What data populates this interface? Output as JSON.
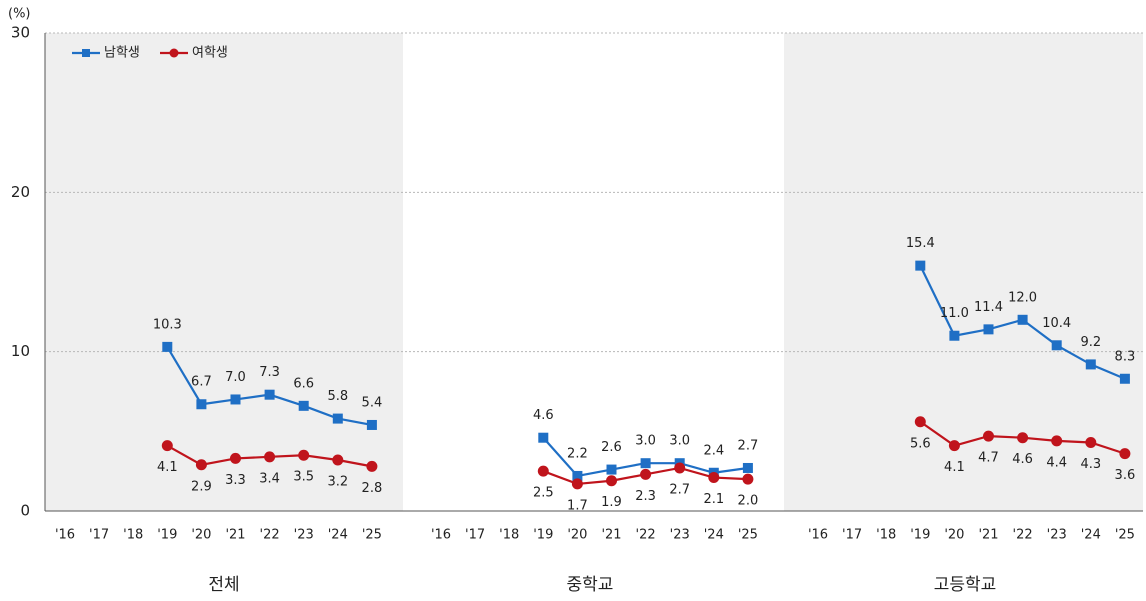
{
  "chart_data": {
    "type": "line",
    "y_unit": "(%)",
    "ylim": [
      0,
      30
    ],
    "yticks": [
      0,
      10,
      20,
      30
    ],
    "grid": true,
    "legend": "upper left",
    "categories": [
      "'16",
      "'17",
      "'18",
      "'19",
      "'20",
      "'21",
      "'22",
      "'23",
      "'24",
      "'25"
    ],
    "series": [
      {
        "name": "남학생",
        "color": "#1f6fc5",
        "marker": "square"
      },
      {
        "name": "여학생",
        "color": "#c0141c",
        "marker": "circle"
      }
    ],
    "panels": [
      {
        "title": "전체",
        "series": [
          {
            "values": [
              null,
              null,
              null,
              10.3,
              6.7,
              7.0,
              7.3,
              6.6,
              5.8,
              5.4
            ],
            "value_labels": [
              null,
              null,
              null,
              "10.3",
              "6.7",
              "7.0",
              "7.3",
              "6.6",
              "5.8",
              "5.4"
            ]
          },
          {
            "values": [
              null,
              null,
              null,
              4.1,
              2.9,
              3.3,
              3.4,
              3.5,
              3.2,
              2.8
            ],
            "value_labels": [
              null,
              null,
              null,
              "4.1",
              "2.9",
              "3.3",
              "3.4",
              "3.5",
              "3.2",
              "2.8"
            ]
          }
        ]
      },
      {
        "title": "중학교",
        "series": [
          {
            "values": [
              null,
              null,
              null,
              4.6,
              2.2,
              2.6,
              3.0,
              3.0,
              2.4,
              2.7
            ],
            "value_labels": [
              null,
              null,
              null,
              "4.6",
              "2.2",
              "2.6",
              "3.0",
              "3.0",
              "2.4",
              "2.7"
            ]
          },
          {
            "values": [
              null,
              null,
              null,
              2.5,
              1.7,
              1.9,
              2.3,
              2.7,
              2.1,
              2.0
            ],
            "value_labels": [
              null,
              null,
              null,
              "2.5",
              "1.7",
              "1.9",
              "2.3",
              "2.7",
              "2.1",
              "2.0"
            ]
          }
        ]
      },
      {
        "title": "고등학교",
        "series": [
          {
            "values": [
              null,
              null,
              null,
              15.4,
              11.0,
              11.4,
              12.0,
              10.4,
              9.2,
              8.3
            ],
            "value_labels": [
              null,
              null,
              null,
              "15.4",
              "11.0",
              "11.4",
              "12.0",
              "10.4",
              "9.2",
              "8.3"
            ]
          },
          {
            "values": [
              null,
              null,
              null,
              5.6,
              4.1,
              4.7,
              4.6,
              4.4,
              4.3,
              3.6
            ],
            "value_labels": [
              null,
              null,
              null,
              "5.6",
              "4.1",
              "4.7",
              "4.6",
              "4.4",
              "4.3",
              "3.6"
            ]
          }
        ]
      }
    ]
  }
}
